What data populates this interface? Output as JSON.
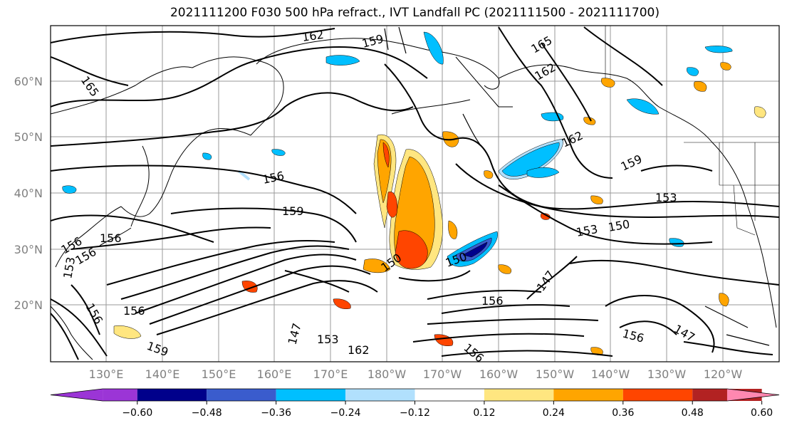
{
  "title": "2021111200 F030 500 hPa refract., IVT Landfall PC (2021111500 - 2021111700)",
  "lat_labels": [
    "60°N",
    "50°N",
    "40°N",
    "30°N",
    "20°N"
  ],
  "lon_labels": [
    "130°E",
    "140°E",
    "150°E",
    "160°E",
    "170°E",
    "180°W",
    "170°W",
    "160°W",
    "150°W",
    "140°W",
    "130°W",
    "120°W"
  ],
  "contour_labels": [
    "162",
    "159",
    "165",
    "165",
    "162",
    "162",
    "159",
    "156",
    "159",
    "153",
    "153",
    "150",
    "150",
    "150",
    "147",
    "156",
    "156",
    "153",
    "156",
    "162",
    "156",
    "156",
    "156",
    "156",
    "159",
    "147",
    "147",
    "153",
    "156"
  ],
  "colorbar": {
    "colors": [
      "#9b35d6",
      "#00008b",
      "#3a5ccd",
      "#00bfff",
      "#b1e0fd",
      "#ffffff",
      "#ffe680",
      "#ffa500",
      "#ff4500",
      "#b22222",
      "#ff88b0"
    ],
    "tick_labels": [
      "−0.60",
      "−0.48",
      "−0.36",
      "−0.24",
      "−0.12",
      "0.12",
      "0.24",
      "0.36",
      "0.48",
      "0.60"
    ]
  },
  "palette": {
    "positive_mid": "#ffa500",
    "positive_high": "#ff4500",
    "negative_mid": "#00bfff",
    "negative_high": "#00008b"
  }
}
